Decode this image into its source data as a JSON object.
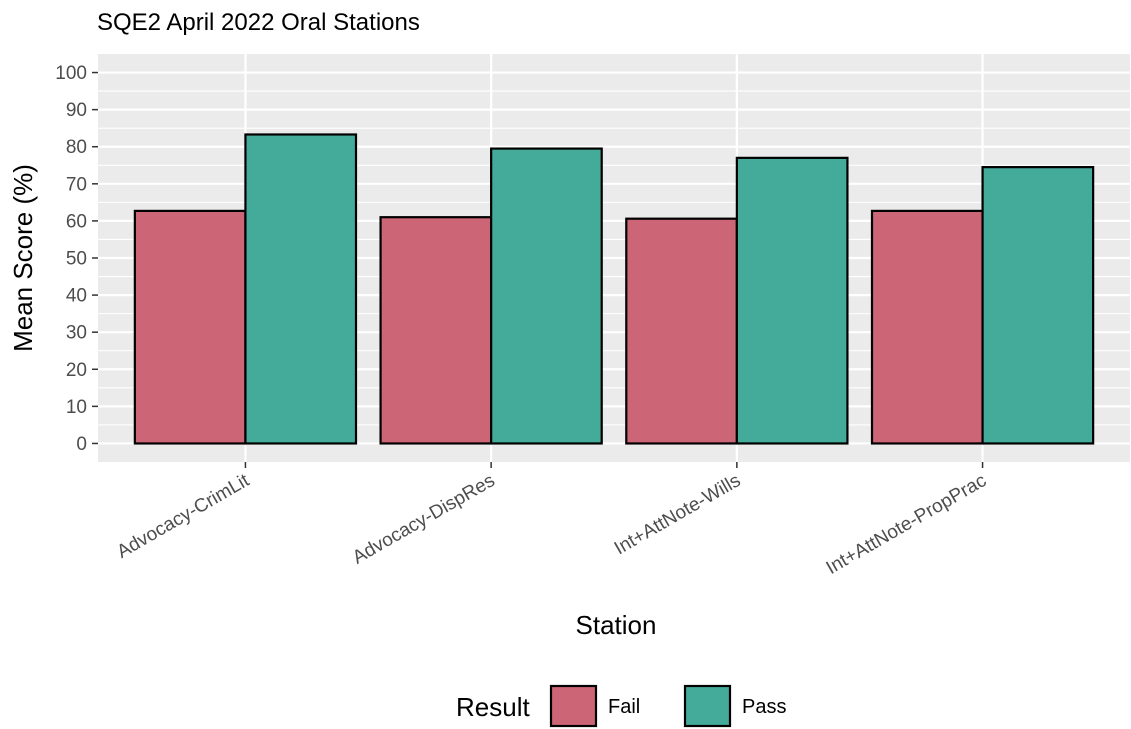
{
  "chart_data": {
    "type": "bar",
    "title": "SQE2 April 2022 Oral Stations",
    "xlabel": "Station",
    "ylabel": "Mean Score (%)",
    "categories": [
      "Advocacy-CrimLit",
      "Advocacy-DispRes",
      "Int+AttNote-Wills",
      "Int+AttNote-PropPrac"
    ],
    "series": [
      {
        "name": "Fail",
        "color": "#cc6677",
        "values": [
          62.7,
          61.0,
          60.6,
          62.7
        ]
      },
      {
        "name": "Pass",
        "color": "#44aa99",
        "values": [
          83.3,
          79.5,
          77.0,
          74.5
        ]
      }
    ],
    "ylim": [
      -5,
      105
    ],
    "yticks": [
      0,
      10,
      20,
      30,
      40,
      50,
      60,
      70,
      80,
      90,
      100
    ],
    "grid": true,
    "legend": {
      "title": "Result",
      "position": "bottom"
    }
  }
}
